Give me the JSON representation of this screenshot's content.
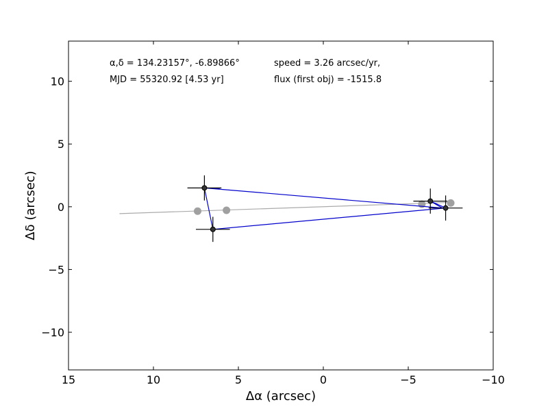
{
  "chart_data": {
    "type": "scatter",
    "title": "",
    "xlabel": "Δα (arcsec)",
    "ylabel": "Δδ (arcsec)",
    "xlim": [
      15,
      -10
    ],
    "ylim": [
      -13,
      13.2
    ],
    "xticks": [
      15,
      10,
      5,
      0,
      -5,
      -10
    ],
    "xtick_labels": [
      "15",
      "10",
      "5",
      "0",
      "−5",
      "−10"
    ],
    "yticks": [
      10,
      5,
      0,
      -5,
      -10
    ],
    "ytick_labels": [
      "10",
      "5",
      "0",
      "−5",
      "−10"
    ],
    "grid": false,
    "annotations": {
      "coords": "α,δ = 134.23157°, -6.89866°",
      "mjd": "MJD = 55320.92 [4.53 yr]",
      "speed": "speed = 3.26 arcsec/yr,",
      "flux": "flux (first obj) = -1515.8"
    },
    "colors": {
      "detection_path": "#0000cc",
      "fit_line": "#aaaaaa",
      "fit_points": "#a0a0a0",
      "detections": "#333333"
    },
    "detections": [
      {
        "x": 7.0,
        "y": 1.5,
        "xerr": 1.0,
        "yerr": 1.0
      },
      {
        "x": 6.5,
        "y": -1.8,
        "xerr": 1.0,
        "yerr": 1.0
      },
      {
        "x": -6.3,
        "y": 0.45,
        "xerr": 1.0,
        "yerr": 1.0
      },
      {
        "x": -7.2,
        "y": -0.1,
        "xerr": 1.0,
        "yerr": 1.0
      }
    ],
    "path_order_x": [
      6.1,
      7.0,
      6.5,
      -7.2,
      -6.3,
      -7.0,
      7.0,
      6.1
    ],
    "path_order_y": [
      1.45,
      1.5,
      -1.8,
      -0.1,
      0.45,
      -0.1,
      1.5,
      1.45
    ],
    "fit_line": {
      "x": [
        12.0,
        -7.5
      ],
      "y": [
        -0.55,
        0.35
      ]
    },
    "fit_points": [
      {
        "x": 7.4,
        "y": -0.35
      },
      {
        "x": 5.7,
        "y": -0.28
      },
      {
        "x": -5.8,
        "y": 0.2
      },
      {
        "x": -7.5,
        "y": 0.3
      }
    ]
  }
}
